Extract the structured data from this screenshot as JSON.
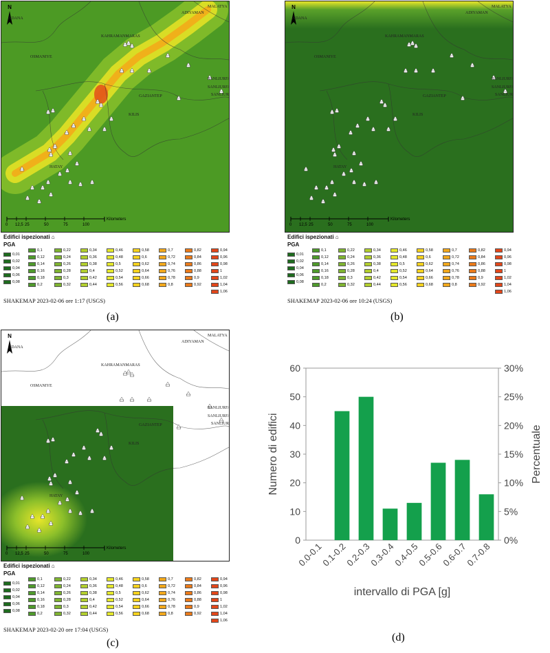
{
  "panels": [
    {
      "id": "a",
      "caption": "(a)",
      "variant": "strong",
      "footer": "SHAKEMAP 2023-02-06 ore 1:17 (USGS)"
    },
    {
      "id": "b",
      "caption": "(b)",
      "variant": "weak",
      "footer": "SHAKEMAP 2023-02-06 ore 10:24 (USGS)"
    },
    {
      "id": "c",
      "caption": "(c)",
      "variant": "partial",
      "footer": "SHAKEMAP 2023-02-20 ore 17:04 (USGS)"
    }
  ],
  "map_labels": {
    "north": "N",
    "cities": [
      "MALATYA",
      "ADANA",
      "KAHRAMANMARAS",
      "ADIYAMAN",
      "OSMANIYE",
      "SANLIURFA",
      "SANLIURFA",
      "GAZIANTEP",
      "SANLIURFA",
      "KILIS",
      "HATAY"
    ],
    "scale_ticks": [
      "0",
      "12,5",
      "25",
      "50",
      "75",
      "100"
    ],
    "scale_unit": "Kilometers"
  },
  "legend": {
    "title": "Edifici ispezionati",
    "pga_label": "PGA",
    "columns": [
      [
        "0,01",
        "0,02",
        "0,04",
        "0,06",
        "0,08"
      ],
      [
        "0,1",
        "0,12",
        "0,14",
        "0,16",
        "0,18",
        "0,2"
      ],
      [
        "0,22",
        "0,24",
        "0,26",
        "0,28",
        "0,3",
        "0,32"
      ],
      [
        "0,34",
        "0,36",
        "0,38",
        "0,4",
        "0,42",
        "0,44"
      ],
      [
        "0,46",
        "0,48",
        "0,5",
        "0,52",
        "0,54",
        "0,56"
      ],
      [
        "0,58",
        "0,6",
        "0,62",
        "0,64",
        "0,66",
        "0,68"
      ],
      [
        "0,7",
        "0,72",
        "0,74",
        "0,76",
        "0,78",
        "0,8"
      ],
      [
        "0,82",
        "0,84",
        "0,86",
        "0,88",
        "0,9",
        "0,92"
      ],
      [
        "0,94",
        "0,96",
        "0,98",
        "1",
        "1,02",
        "1,04",
        "1,06"
      ]
    ],
    "colors": [
      "#1e6b1e",
      "#4f9a2c",
      "#7fb431",
      "#b3cf2e",
      "#e5e82b",
      "#f6d21e",
      "#f2a81c",
      "#ea7a1a",
      "#e2471a"
    ]
  },
  "chart": {
    "caption": "(d)",
    "bar_color": "#14a04c",
    "chart_data": {
      "type": "bar",
      "categories": [
        "0.0-0.1",
        "0.1-0.2",
        "0.2-0.3",
        "0.3-0.4",
        "0.4-0.5",
        "0.5-0.6",
        "0.6-0.7",
        "0.7-0.8"
      ],
      "values": [
        0,
        45,
        50,
        11,
        13,
        27,
        28,
        16
      ],
      "xlabel": "intervallo di PGA [g]",
      "ylabel": "Numero di edifici",
      "y2label": "Percentuale",
      "ylim": [
        0,
        60
      ],
      "yticks": [
        "0",
        "10",
        "20",
        "30",
        "40",
        "50",
        "60"
      ],
      "y2ticks": [
        "0%",
        "5%",
        "10%",
        "15%",
        "20%",
        "25%",
        "30%"
      ],
      "grid": false
    }
  }
}
